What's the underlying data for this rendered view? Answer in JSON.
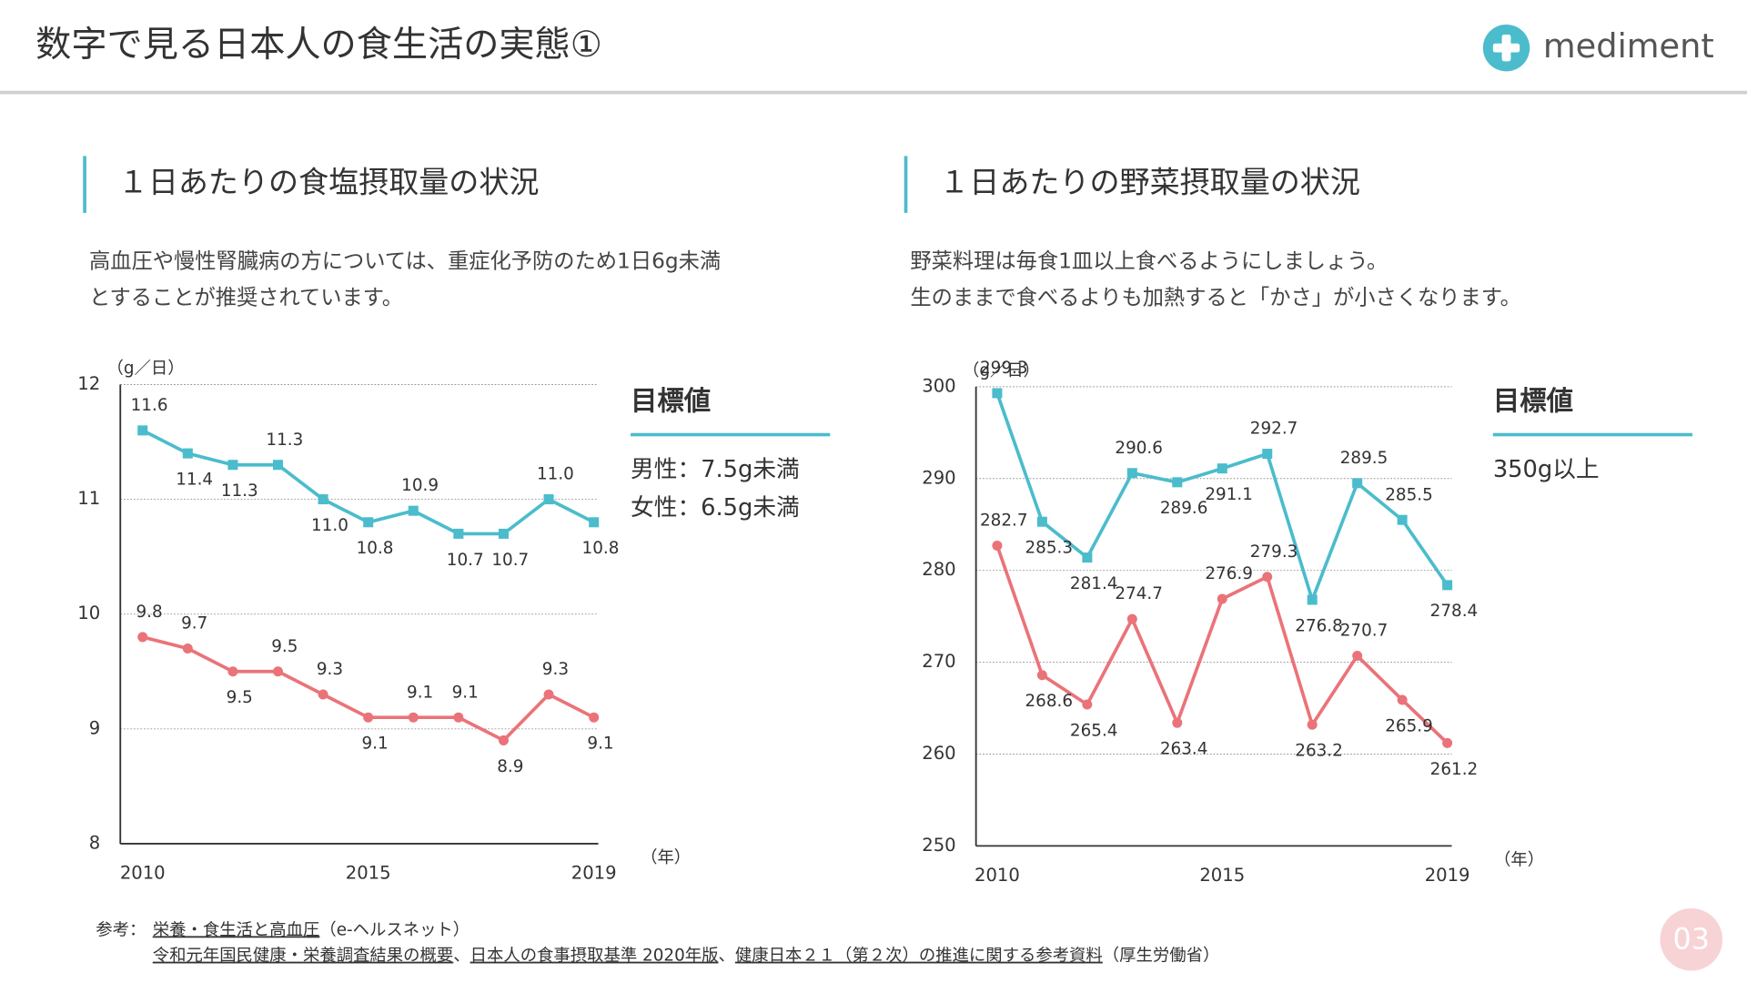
{
  "header": {
    "title": "数字で見る日本人の食生活の実態①",
    "logo": "mediment"
  },
  "chart_data": [
    {
      "type": "line",
      "title": "１日あたりの食塩摂取量の状況",
      "description": [
        "高血圧や慢性腎臓病の方については、重症化予防のため1日6g未満",
        "とすることが推奨されています。"
      ],
      "y_label": "（g／日）",
      "x_label": "（年）",
      "categories": [
        "2010",
        null,
        null,
        null,
        null,
        "2015",
        null,
        null,
        null,
        null,
        "2019"
      ],
      "ylim": [
        8,
        12
      ],
      "yticks": [
        8,
        9,
        10,
        11,
        12
      ],
      "grid": true,
      "series": [
        {
          "color": "#4bbccc",
          "marker": "square",
          "values": [
            11.6,
            11.4,
            11.3,
            11.3,
            11.0,
            10.8,
            10.9,
            10.7,
            10.7,
            11.0,
            10.8
          ],
          "value_labels": [
            "11.6",
            "11.4",
            "11.3",
            "11.3",
            "11.0",
            "10.8",
            "10.9",
            "10.7",
            "10.7",
            "11.0",
            "10.8"
          ]
        },
        {
          "color": "#ea7379",
          "marker": "circle",
          "values": [
            9.8,
            9.7,
            9.5,
            9.5,
            9.3,
            9.1,
            9.1,
            9.1,
            8.9,
            9.3,
            9.1
          ],
          "value_labels": [
            "9.8",
            "9.7",
            "9.5",
            "9.5",
            "9.3",
            "9.1",
            "9.1",
            "9.1",
            "8.9",
            "9.3",
            "9.1"
          ]
        }
      ],
      "target": {
        "title": "目標値",
        "lines": [
          "男性：7.5g未満",
          "女性：6.5g未満"
        ]
      }
    },
    {
      "type": "line",
      "title": "１日あたりの野菜摂取量の状況",
      "description": [
        "野菜料理は毎食1皿以上食べるようにしましょう。",
        "生のままで食べるよりも加熱すると「かさ」が小さくなります。"
      ],
      "y_label": "（g／日）",
      "x_label": "（年）",
      "categories": [
        "2010",
        null,
        null,
        null,
        null,
        "2015",
        null,
        null,
        null,
        null,
        "2019"
      ],
      "ylim": [
        250,
        300
      ],
      "yticks": [
        250,
        260,
        270,
        280,
        290,
        300
      ],
      "grid": true,
      "series": [
        {
          "color": "#4bbccc",
          "marker": "square",
          "values": [
            299.3,
            285.3,
            281.4,
            290.6,
            289.6,
            291.1,
            292.7,
            276.8,
            289.5,
            285.5,
            278.4
          ]
        },
        {
          "color": "#ea7379",
          "marker": "circle",
          "values": [
            282.7,
            268.6,
            265.4,
            274.7,
            263.4,
            276.9,
            279.3,
            263.2,
            270.7,
            265.9,
            261.2
          ]
        }
      ],
      "target": {
        "title": "目標値",
        "lines": [
          "350g以上"
        ]
      }
    }
  ],
  "references": {
    "label": "参考：",
    "lines": [
      [
        {
          "text": "栄養・食生活と高血圧",
          "underline": true
        },
        {
          "text": "（e-ヘルスネット）"
        }
      ],
      [
        {
          "text": "令和元年国民健康・栄養調査結果の概要",
          "underline": true
        },
        {
          "text": "、"
        },
        {
          "text": "日本人の食事摂取基準 2020年版",
          "underline": true
        },
        {
          "text": "、"
        },
        {
          "text": "健康日本２１（第２次）の推進に関する参考資料",
          "underline": true
        },
        {
          "text": "（厚生労働省）"
        }
      ]
    ]
  },
  "page_number": "03"
}
